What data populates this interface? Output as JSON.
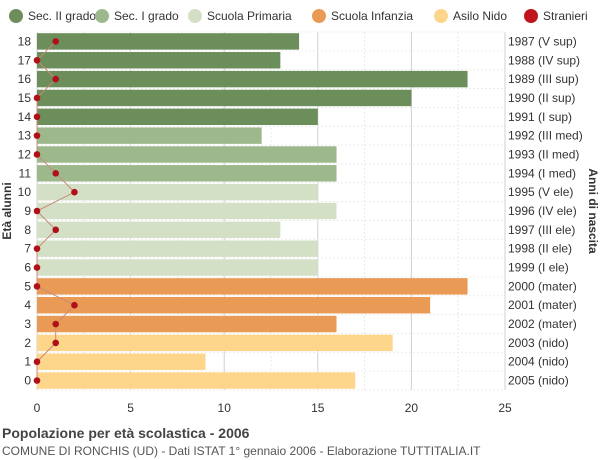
{
  "chart_data": {
    "type": "bar",
    "orientation": "horizontal",
    "ylabel": "Età alunni",
    "y2label": "Anni di nascita",
    "xlim": [
      0,
      25
    ],
    "xticks": [
      0,
      5,
      10,
      15,
      20,
      25
    ],
    "grid": true,
    "legend_position": "top",
    "legend": [
      {
        "name": "Sec. II grado",
        "color": "#6b8e5a",
        "shape": "circle"
      },
      {
        "name": "Sec. I grado",
        "color": "#9db98b",
        "shape": "circle"
      },
      {
        "name": "Scuola Primaria",
        "color": "#d4e0c6",
        "shape": "circle"
      },
      {
        "name": "Scuola Infanzia",
        "color": "#e99b55",
        "shape": "circle"
      },
      {
        "name": "Asilo Nido",
        "color": "#fdd68b",
        "shape": "circle"
      },
      {
        "name": "Stranieri",
        "color": "#c0141c",
        "shape": "circle"
      }
    ],
    "categories": [
      "18",
      "17",
      "16",
      "15",
      "14",
      "13",
      "12",
      "11",
      "10",
      "9",
      "8",
      "7",
      "6",
      "5",
      "4",
      "3",
      "2",
      "1",
      "0"
    ],
    "birth_years": [
      "1987 (V sup)",
      "1988 (IV sup)",
      "1989 (III sup)",
      "1990 (II sup)",
      "1991 (I sup)",
      "1992 (III med)",
      "1993 (II med)",
      "1994 (I med)",
      "1995 (V ele)",
      "1996 (IV ele)",
      "1997 (III ele)",
      "1998 (II ele)",
      "1999 (I ele)",
      "2000 (mater)",
      "2001 (mater)",
      "2002 (mater)",
      "2003 (nido)",
      "2004 (nido)",
      "2005 (nido)"
    ],
    "values": [
      14,
      13,
      23,
      20,
      15,
      12,
      16,
      16,
      15,
      16,
      13,
      15,
      15,
      23,
      21,
      16,
      19,
      9,
      17
    ],
    "groups": [
      "Sec. II grado",
      "Sec. II grado",
      "Sec. II grado",
      "Sec. II grado",
      "Sec. II grado",
      "Sec. I grado",
      "Sec. I grado",
      "Sec. I grado",
      "Scuola Primaria",
      "Scuola Primaria",
      "Scuola Primaria",
      "Scuola Primaria",
      "Scuola Primaria",
      "Scuola Infanzia",
      "Scuola Infanzia",
      "Scuola Infanzia",
      "Asilo Nido",
      "Asilo Nido",
      "Asilo Nido"
    ],
    "stranieri": [
      1,
      0,
      1,
      0,
      0,
      0,
      0,
      1,
      2,
      0,
      1,
      0,
      0,
      0,
      2,
      1,
      1,
      0,
      0
    ]
  },
  "footer": {
    "title": "Popolazione per età scolastica - 2006",
    "subtitle": "COMUNE DI RONCHIS (UD) - Dati ISTAT 1° gennaio 2006 - Elaborazione TUTTITALIA.IT"
  }
}
